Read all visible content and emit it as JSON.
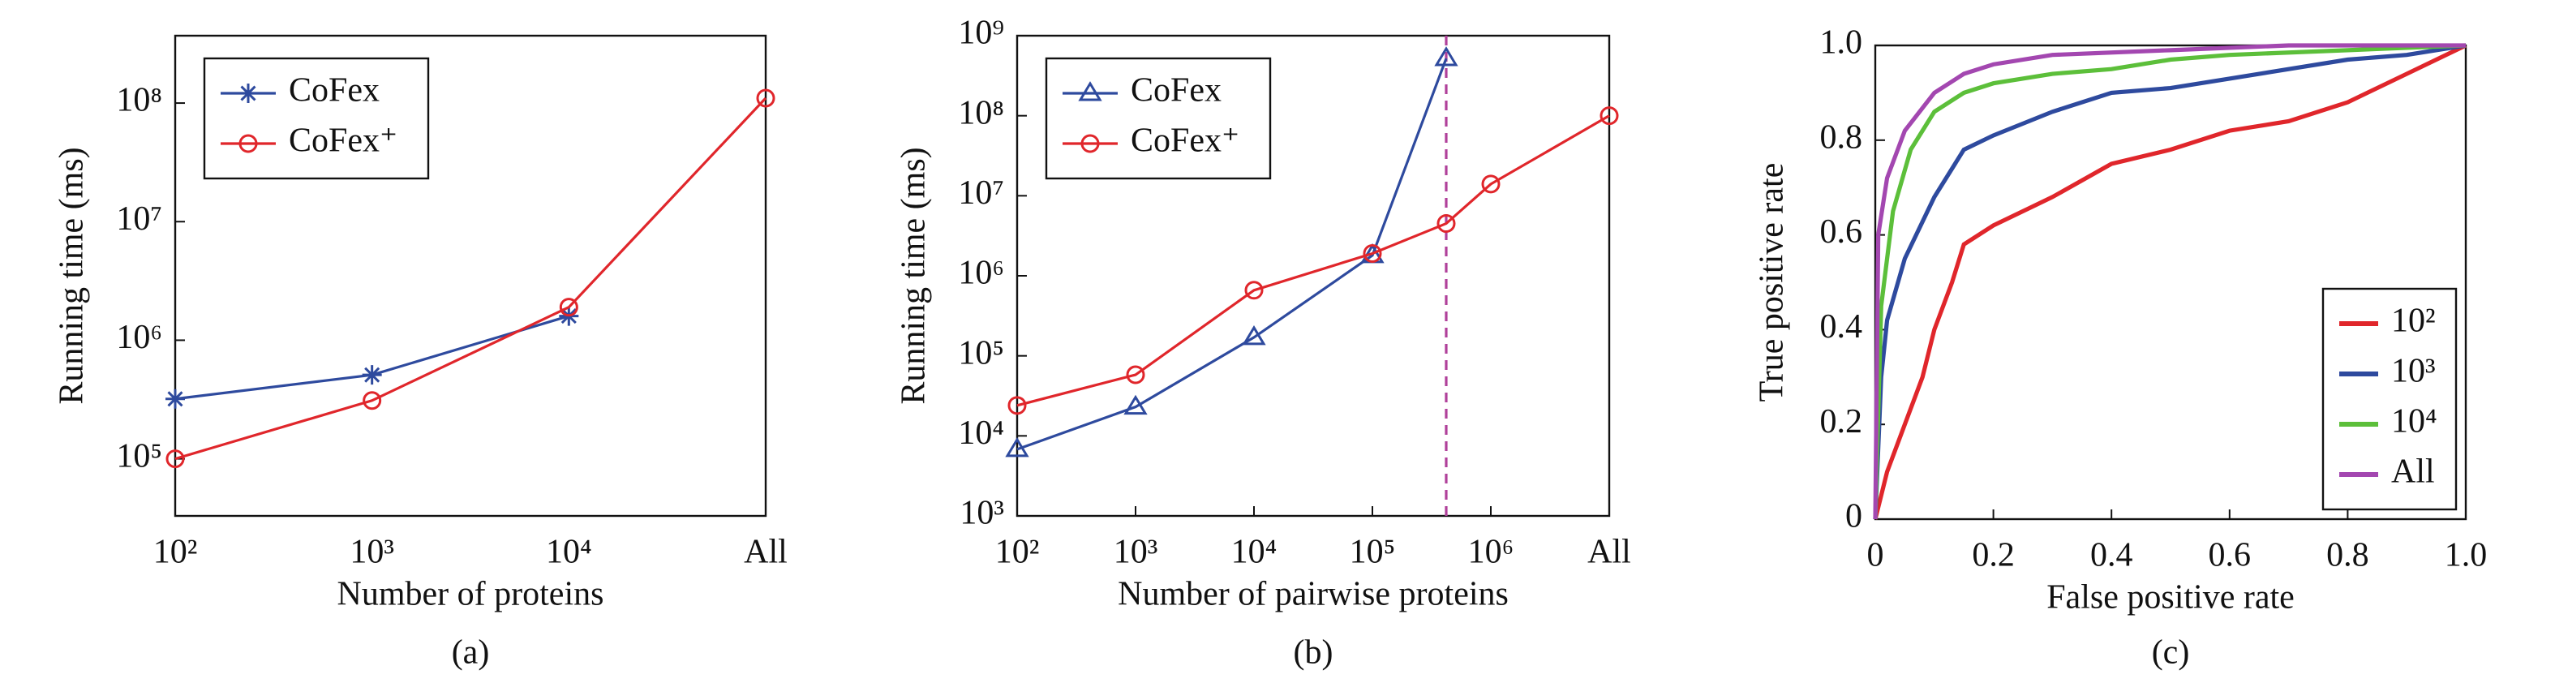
{
  "chart_data": [
    {
      "type": "line",
      "caption": "(a)",
      "xlabel": "Number of proteins",
      "ylabel": "Running time (ms)",
      "categories": [
        "10²",
        "10³",
        "10⁴",
        "All"
      ],
      "ylog": true,
      "ylim": [
        33000,
        370000000
      ],
      "yticks": [
        {
          "value": 100000,
          "label": "10⁵"
        },
        {
          "value": 1000000,
          "label": "10⁶"
        },
        {
          "value": 10000000,
          "label": "10⁷"
        },
        {
          "value": 100000000,
          "label": "10⁸"
        }
      ],
      "legend": "upper left",
      "series": [
        {
          "name": "CoFex",
          "color": "#2e4a9e",
          "marker": "star",
          "values": [
            320000,
            510000,
            1600000,
            null
          ]
        },
        {
          "name": "CoFex⁺",
          "color": "#e0262b",
          "marker": "circle",
          "values": [
            100000,
            310000,
            1900000,
            110000000
          ]
        }
      ]
    },
    {
      "type": "line",
      "caption": "(b)",
      "xlabel": "Number of pairwise proteins",
      "ylabel": "Running time (ms)",
      "xlog": true,
      "xlim": [
        100,
        10000000
      ],
      "xticks": [
        {
          "value": 100,
          "label": "10²"
        },
        {
          "value": 1000,
          "label": "10³"
        },
        {
          "value": 10000,
          "label": "10⁴"
        },
        {
          "value": 100000,
          "label": "10⁵"
        },
        {
          "value": 1000000,
          "label": "10⁶"
        },
        {
          "value": 10000000,
          "label": "All"
        }
      ],
      "ylog": true,
      "ylim": [
        1000,
        1000000000
      ],
      "yticks": [
        {
          "value": 1000,
          "label": "10³"
        },
        {
          "value": 10000,
          "label": "10⁴"
        },
        {
          "value": 100000,
          "label": "10⁵"
        },
        {
          "value": 1000000,
          "label": "10⁶"
        },
        {
          "value": 10000000,
          "label": "10⁷"
        },
        {
          "value": 100000000,
          "label": "10⁸"
        },
        {
          "value": 1000000000,
          "label": "10⁹"
        }
      ],
      "vline": 420000,
      "vline_color": "#b0409a",
      "legend": "upper left",
      "series": [
        {
          "name": "CoFex",
          "color": "#2e4a9e",
          "marker": "triangle",
          "x": [
            100,
            1000,
            10000,
            100000,
            420000
          ],
          "values": [
            6800,
            23000,
            170000,
            1800000,
            520000000
          ]
        },
        {
          "name": "CoFex⁺",
          "color": "#e0262b",
          "marker": "circle",
          "x": [
            100,
            1000,
            10000,
            100000,
            420000,
            1000000,
            10000000
          ],
          "values": [
            24000,
            58000,
            660000,
            1900000,
            4500000,
            14000000,
            100000000
          ]
        }
      ]
    },
    {
      "type": "line",
      "caption": "(c)",
      "xlabel": "False positive rate",
      "ylabel": "True positive rate",
      "xlim": [
        0,
        1
      ],
      "xticks": [
        0,
        0.2,
        0.4,
        0.6,
        0.8,
        {
          "value": 1,
          "label": "1.0"
        }
      ],
      "ylim": [
        0,
        1
      ],
      "yticks": [
        0,
        0.2,
        0.4,
        0.6,
        0.8,
        {
          "value": 1,
          "label": "1.0"
        }
      ],
      "legend": "lower right",
      "series": [
        {
          "name": "10²",
          "color": "#e0262b",
          "x": [
            0,
            0.02,
            0.05,
            0.08,
            0.1,
            0.13,
            0.15,
            0.2,
            0.3,
            0.4,
            0.5,
            0.6,
            0.7,
            0.8,
            0.9,
            1
          ],
          "values": [
            0,
            0.1,
            0.2,
            0.3,
            0.4,
            0.5,
            0.58,
            0.62,
            0.68,
            0.75,
            0.78,
            0.82,
            0.84,
            0.88,
            0.94,
            1
          ]
        },
        {
          "name": "10³",
          "color": "#2e4a9e",
          "x": [
            0,
            0.01,
            0.02,
            0.05,
            0.1,
            0.15,
            0.2,
            0.3,
            0.4,
            0.5,
            0.6,
            0.7,
            0.8,
            0.9,
            1
          ],
          "values": [
            0,
            0.3,
            0.42,
            0.55,
            0.68,
            0.78,
            0.81,
            0.86,
            0.9,
            0.91,
            0.93,
            0.95,
            0.97,
            0.98,
            1
          ]
        },
        {
          "name": "10⁴",
          "color": "#5cbf3a",
          "x": [
            0,
            0.01,
            0.03,
            0.06,
            0.1,
            0.15,
            0.2,
            0.3,
            0.4,
            0.5,
            0.6,
            0.8,
            1
          ],
          "values": [
            0,
            0.45,
            0.65,
            0.78,
            0.86,
            0.9,
            0.92,
            0.94,
            0.95,
            0.97,
            0.98,
            0.99,
            1
          ]
        },
        {
          "name": "All",
          "color": "#a347b0",
          "x": [
            0,
            0.005,
            0.02,
            0.05,
            0.1,
            0.15,
            0.2,
            0.3,
            0.5,
            0.7,
            1
          ],
          "values": [
            0,
            0.6,
            0.72,
            0.82,
            0.9,
            0.94,
            0.96,
            0.98,
            0.99,
            1,
            1
          ]
        }
      ]
    }
  ]
}
